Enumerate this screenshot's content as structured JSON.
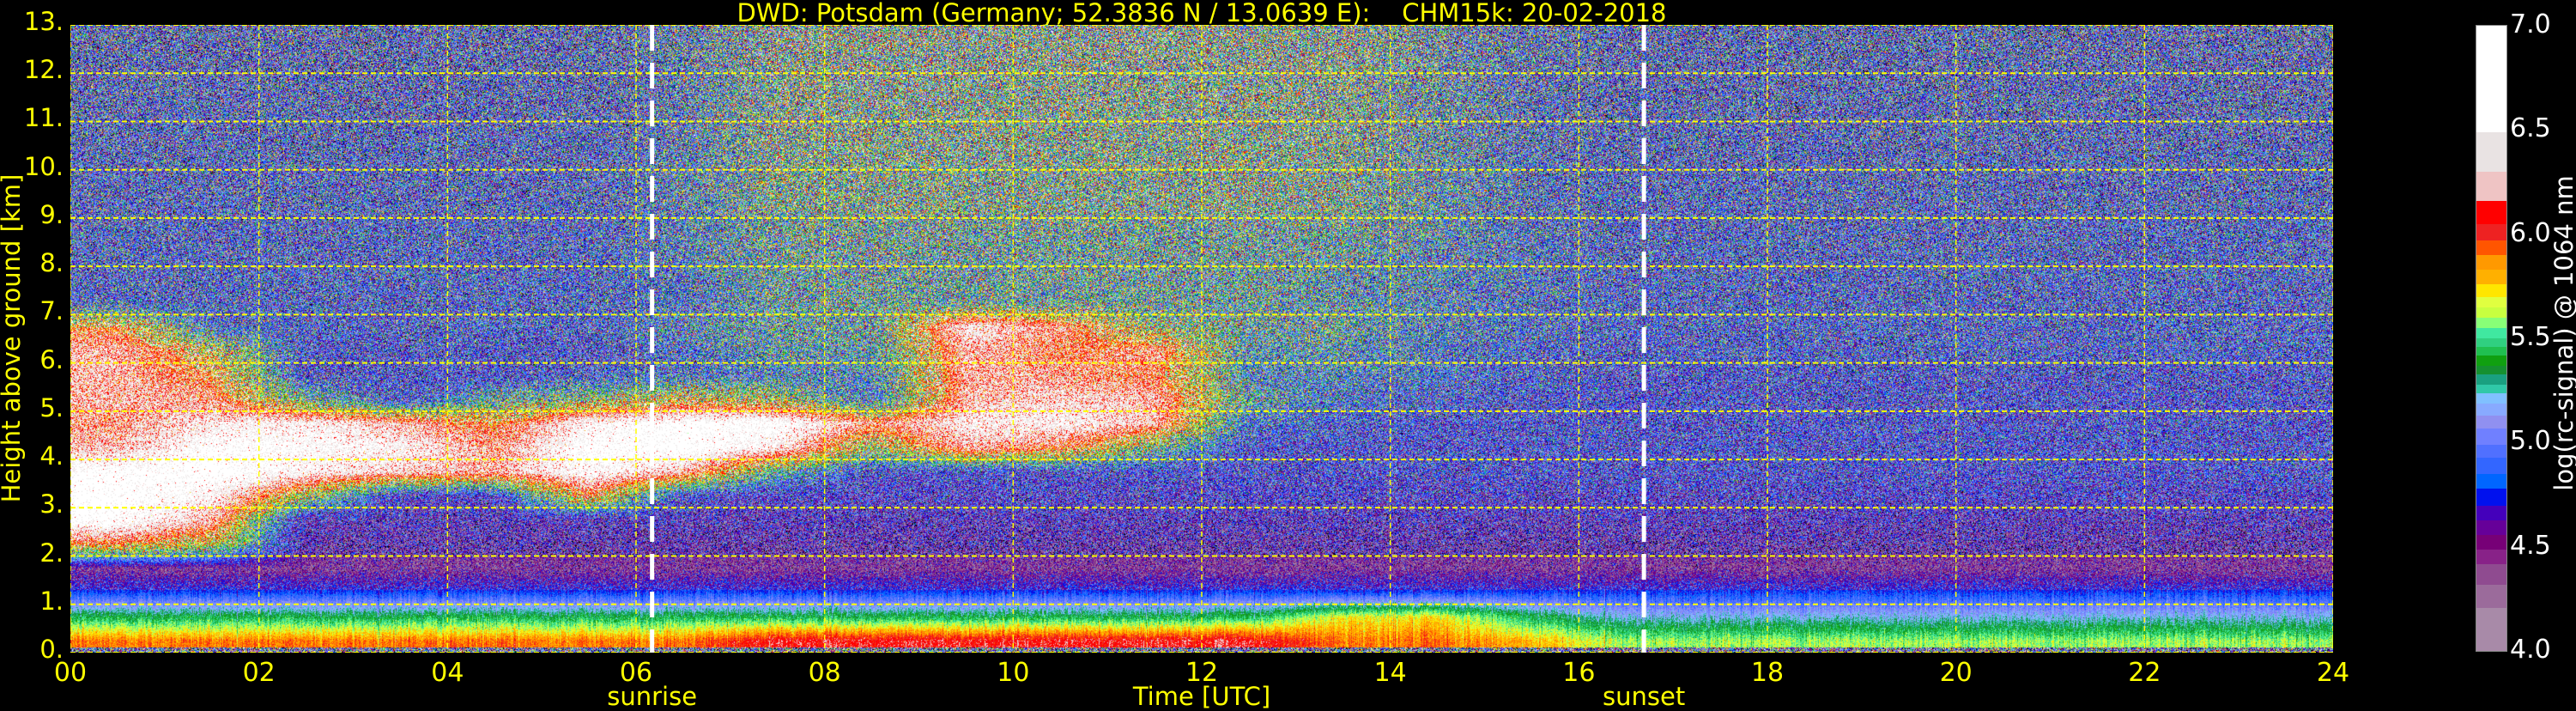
{
  "chart_data": {
    "type": "heatmap",
    "title": "DWD: Potsdam (Germany; 52.3836 N / 13.0639 E):    CHM15k: 20-02-2018",
    "xlabel": "Time [UTC]",
    "ylabel": "Height above ground [km]",
    "xlim": [
      0,
      24
    ],
    "ylim": [
      0,
      13
    ],
    "x_ticks": [
      "00",
      "02",
      "04",
      "06",
      "08",
      "10",
      "12",
      "14",
      "16",
      "18",
      "20",
      "22",
      "24"
    ],
    "x_tick_values": [
      0,
      2,
      4,
      6,
      8,
      10,
      12,
      14,
      16,
      18,
      20,
      22,
      24
    ],
    "y_ticks": [
      "0.",
      "1.",
      "2.",
      "3.",
      "4.",
      "5.",
      "6.",
      "7.",
      "8.",
      "9.",
      "10.",
      "11.",
      "12.",
      "13."
    ],
    "y_tick_values": [
      0,
      1,
      2,
      3,
      4,
      5,
      6,
      7,
      8,
      9,
      10,
      11,
      12,
      13
    ],
    "grid": true,
    "grid_color": "#ffff00",
    "events": [
      {
        "label": "sunrise",
        "time": 6.17
      },
      {
        "label": "sunset",
        "time": 16.69
      }
    ],
    "colorbar": {
      "label": "log(rc-signal) @ 1064 nm",
      "range": [
        4.0,
        7.0
      ],
      "ticks": [
        "4.0",
        "4.5",
        "5.0",
        "5.5",
        "6.0",
        "6.5",
        "7.0"
      ],
      "tick_values": [
        4.0,
        4.5,
        5.0,
        5.5,
        6.0,
        6.5,
        7.0
      ],
      "levels": [
        {
          "from": 4.0,
          "color": "#a88aa8"
        },
        {
          "from": 4.21,
          "color": "#9b6b9b"
        },
        {
          "from": 4.32,
          "color": "#8f4b90"
        },
        {
          "from": 4.42,
          "color": "#882288"
        },
        {
          "from": 4.49,
          "color": "#770077"
        },
        {
          "from": 4.56,
          "color": "#660099"
        },
        {
          "from": 4.63,
          "color": "#4400bb"
        },
        {
          "from": 4.7,
          "color": "#0011ee"
        },
        {
          "from": 4.78,
          "color": "#0066ff"
        },
        {
          "from": 4.85,
          "color": "#3366ff"
        },
        {
          "from": 4.93,
          "color": "#5070ff"
        },
        {
          "from": 4.99,
          "color": "#7080ff"
        },
        {
          "from": 5.07,
          "color": "#9090f0"
        },
        {
          "from": 5.13,
          "color": "#88aaff"
        },
        {
          "from": 5.19,
          "color": "#80c0ff"
        },
        {
          "from": 5.24,
          "color": "#30c8a8"
        },
        {
          "from": 5.28,
          "color": "#1aa080"
        },
        {
          "from": 5.33,
          "color": "#159030"
        },
        {
          "from": 5.37,
          "color": "#10a010"
        },
        {
          "from": 5.42,
          "color": "#20c050"
        },
        {
          "from": 5.46,
          "color": "#30d080"
        },
        {
          "from": 5.5,
          "color": "#40e8a0"
        },
        {
          "from": 5.55,
          "color": "#88ff77"
        },
        {
          "from": 5.6,
          "color": "#c8ff40"
        },
        {
          "from": 5.65,
          "color": "#e0ff40"
        },
        {
          "from": 5.7,
          "color": "#ffe600"
        },
        {
          "from": 5.76,
          "color": "#ffb000"
        },
        {
          "from": 5.83,
          "color": "#ff9900"
        },
        {
          "from": 5.9,
          "color": "#ff5500"
        },
        {
          "from": 5.97,
          "color": "#ee2222"
        },
        {
          "from": 6.05,
          "color": "#ff0000"
        },
        {
          "from": 6.16,
          "color": "#efc4c4"
        },
        {
          "from": 6.3,
          "color": "#e9e3e3"
        },
        {
          "from": 6.49,
          "color": "#ffffff"
        }
      ]
    },
    "time_hours": [
      0.5,
      1.5,
      2.5,
      3.5,
      4.5,
      5.5,
      6.5,
      7.5,
      8.5,
      9.5,
      10.5,
      11.5,
      12.5,
      13.5,
      14.5,
      15.5,
      16.5,
      17.5,
      18.5,
      19.5,
      20.5,
      21.5,
      22.5,
      23.5
    ],
    "height_km": [
      12.75,
      12.25,
      11.75,
      11.25,
      10.75,
      10.25,
      9.75,
      9.25,
      8.75,
      8.25,
      7.75,
      7.25,
      6.75,
      6.25,
      5.75,
      5.25,
      4.75,
      4.25,
      3.75,
      3.25,
      2.75,
      2.25,
      1.75,
      1.25,
      0.75,
      0.25
    ],
    "values": [
      [
        4.9,
        4.9,
        4.9,
        4.9,
        4.9,
        4.9,
        5.1,
        5.4,
        5.4,
        5.4,
        5.4,
        5.4,
        5.4,
        5.4,
        5.2,
        5.0,
        4.9,
        4.9,
        4.9,
        4.9,
        4.9,
        4.9,
        4.9,
        4.9
      ],
      [
        4.9,
        4.9,
        4.9,
        4.9,
        4.9,
        4.9,
        5.1,
        5.4,
        5.4,
        5.4,
        5.4,
        5.4,
        5.4,
        5.4,
        5.2,
        5.0,
        4.9,
        4.9,
        4.9,
        4.9,
        4.9,
        4.9,
        4.9,
        4.9
      ],
      [
        4.9,
        4.9,
        4.9,
        4.9,
        4.9,
        4.9,
        5.1,
        5.4,
        5.4,
        5.4,
        5.4,
        5.4,
        5.4,
        5.4,
        5.2,
        5.0,
        4.9,
        4.9,
        4.9,
        4.9,
        4.9,
        4.9,
        4.9,
        4.9
      ],
      [
        4.9,
        4.9,
        4.9,
        4.9,
        4.9,
        4.9,
        5.1,
        5.4,
        5.4,
        5.4,
        5.4,
        5.4,
        5.4,
        5.4,
        5.2,
        5.0,
        4.9,
        4.9,
        4.9,
        4.9,
        4.9,
        4.9,
        4.9,
        4.9
      ],
      [
        4.9,
        4.9,
        4.9,
        4.9,
        4.9,
        4.9,
        5.1,
        5.4,
        5.4,
        5.4,
        5.4,
        5.4,
        5.4,
        5.4,
        5.2,
        5.0,
        4.9,
        4.9,
        4.9,
        4.9,
        4.9,
        4.9,
        4.9,
        4.9
      ],
      [
        4.9,
        4.9,
        4.9,
        4.9,
        4.9,
        4.9,
        5.1,
        5.4,
        5.4,
        5.4,
        5.4,
        5.4,
        5.4,
        5.4,
        5.2,
        5.0,
        4.9,
        4.9,
        4.9,
        4.9,
        4.9,
        4.9,
        4.9,
        4.9
      ],
      [
        4.9,
        4.9,
        4.9,
        4.9,
        4.9,
        4.9,
        5.1,
        5.4,
        5.4,
        5.4,
        5.4,
        5.4,
        5.4,
        5.4,
        5.2,
        5.0,
        4.9,
        4.9,
        4.9,
        4.9,
        4.9,
        4.9,
        4.9,
        4.9
      ],
      [
        4.9,
        4.9,
        4.9,
        4.9,
        4.9,
        4.9,
        5.1,
        5.4,
        5.4,
        5.4,
        5.4,
        5.4,
        5.4,
        5.4,
        5.2,
        5.0,
        4.9,
        4.9,
        4.9,
        4.9,
        4.9,
        4.9,
        4.9,
        4.9
      ],
      [
        4.9,
        4.9,
        4.9,
        4.9,
        4.9,
        4.9,
        5.1,
        5.3,
        5.3,
        5.3,
        5.3,
        5.3,
        5.3,
        5.3,
        5.2,
        5.0,
        4.9,
        4.9,
        4.9,
        4.9,
        4.9,
        4.9,
        4.9,
        4.9
      ],
      [
        4.9,
        4.9,
        4.9,
        4.9,
        4.9,
        4.9,
        5.1,
        5.3,
        5.3,
        5.3,
        5.3,
        5.3,
        5.3,
        5.3,
        5.1,
        5.0,
        4.9,
        4.9,
        4.9,
        4.9,
        4.9,
        4.9,
        4.9,
        4.9
      ],
      [
        4.9,
        4.9,
        4.9,
        4.9,
        4.9,
        4.9,
        5.0,
        5.3,
        5.3,
        5.3,
        5.3,
        5.3,
        5.3,
        5.2,
        5.1,
        5.0,
        4.9,
        4.9,
        4.9,
        4.9,
        4.9,
        4.9,
        4.9,
        4.9
      ],
      [
        4.9,
        4.9,
        4.9,
        4.9,
        4.9,
        4.9,
        5.0,
        5.3,
        5.3,
        5.3,
        5.3,
        5.3,
        5.3,
        5.2,
        5.1,
        5.0,
        4.9,
        4.9,
        4.9,
        4.9,
        4.9,
        4.9,
        4.9,
        4.9
      ],
      [
        6.0,
        5.0,
        4.9,
        4.9,
        4.9,
        4.9,
        5.1,
        5.3,
        5.3,
        6.5,
        6.2,
        5.5,
        5.3,
        5.3,
        5.1,
        5.0,
        4.9,
        4.9,
        4.9,
        4.9,
        4.9,
        4.9,
        4.9,
        4.9
      ],
      [
        6.3,
        5.8,
        4.8,
        4.8,
        4.8,
        4.8,
        5.0,
        5.2,
        5.2,
        6.3,
        6.1,
        6.2,
        5.2,
        5.2,
        5.0,
        4.9,
        4.9,
        4.9,
        4.9,
        4.9,
        4.9,
        4.9,
        4.9,
        4.9
      ],
      [
        6.3,
        6.0,
        4.8,
        4.8,
        4.8,
        4.9,
        5.0,
        5.1,
        5.1,
        6.3,
        6.2,
        6.1,
        5.1,
        5.1,
        5.0,
        4.9,
        4.8,
        4.8,
        4.8,
        4.8,
        4.8,
        4.8,
        4.8,
        4.8
      ],
      [
        6.3,
        6.2,
        5.4,
        4.8,
        5.3,
        5.5,
        5.8,
        5.6,
        5.0,
        6.3,
        6.4,
        6.3,
        5.3,
        5.0,
        4.9,
        4.8,
        4.8,
        4.8,
        4.8,
        4.8,
        4.8,
        4.8,
        4.8,
        4.8
      ],
      [
        6.2,
        6.5,
        6.6,
        6.3,
        6.0,
        6.6,
        6.8,
        6.8,
        6.2,
        6.5,
        6.6,
        6.3,
        5.0,
        4.9,
        4.8,
        4.8,
        4.8,
        4.8,
        4.8,
        4.8,
        4.8,
        4.8,
        4.8,
        4.8
      ],
      [
        6.3,
        6.8,
        6.7,
        6.6,
        6.2,
        6.8,
        6.9,
        6.5,
        5.6,
        6.3,
        6.1,
        5.4,
        4.8,
        4.8,
        4.8,
        4.8,
        4.8,
        4.8,
        4.8,
        4.8,
        4.8,
        4.8,
        4.8,
        4.8
      ],
      [
        6.8,
        6.9,
        6.6,
        6.4,
        6.3,
        6.7,
        6.3,
        5.3,
        4.8,
        4.8,
        4.8,
        4.8,
        4.8,
        4.8,
        4.8,
        4.8,
        4.8,
        4.8,
        4.8,
        4.8,
        4.8,
        4.8,
        4.8,
        4.8
      ],
      [
        6.9,
        6.6,
        5.6,
        4.7,
        4.7,
        6.0,
        4.8,
        4.7,
        4.7,
        4.7,
        4.7,
        4.7,
        4.7,
        4.7,
        4.7,
        4.7,
        4.7,
        4.7,
        4.7,
        4.7,
        4.7,
        4.7,
        4.7,
        4.7
      ],
      [
        6.8,
        6.3,
        4.6,
        4.6,
        4.6,
        4.6,
        4.6,
        4.6,
        4.6,
        4.6,
        4.6,
        4.6,
        4.6,
        4.6,
        4.6,
        4.6,
        4.6,
        4.6,
        4.6,
        4.6,
        4.6,
        4.6,
        4.6,
        4.6
      ],
      [
        6.0,
        5.7,
        4.5,
        4.5,
        4.5,
        4.5,
        4.5,
        4.5,
        4.5,
        4.5,
        4.5,
        4.5,
        4.5,
        4.5,
        4.5,
        4.5,
        4.5,
        4.5,
        4.5,
        4.5,
        4.5,
        4.5,
        4.5,
        4.5
      ],
      [
        4.4,
        4.4,
        4.4,
        4.4,
        4.4,
        4.4,
        4.4,
        4.4,
        4.4,
        4.4,
        4.4,
        4.4,
        4.4,
        4.4,
        4.4,
        4.4,
        4.4,
        4.4,
        4.4,
        4.4,
        4.4,
        4.4,
        4.4,
        4.4
      ],
      [
        4.8,
        4.8,
        4.8,
        4.8,
        4.8,
        4.8,
        4.8,
        4.8,
        4.8,
        4.8,
        4.8,
        4.8,
        4.8,
        4.8,
        4.8,
        4.8,
        4.8,
        4.8,
        4.8,
        4.8,
        4.8,
        4.8,
        4.8,
        4.8
      ],
      [
        5.4,
        5.4,
        5.4,
        5.4,
        5.4,
        5.4,
        5.4,
        5.4,
        5.4,
        5.4,
        5.4,
        5.4,
        5.4,
        5.7,
        5.7,
        5.4,
        5.2,
        5.2,
        5.2,
        5.2,
        5.2,
        5.2,
        5.2,
        5.2
      ],
      [
        5.9,
        5.9,
        5.9,
        5.9,
        5.9,
        5.9,
        5.9,
        6.1,
        6.1,
        6.1,
        6.1,
        6.1,
        6.1,
        5.9,
        5.9,
        5.8,
        5.6,
        5.6,
        5.6,
        5.6,
        5.6,
        5.6,
        5.6,
        5.6
      ]
    ]
  }
}
